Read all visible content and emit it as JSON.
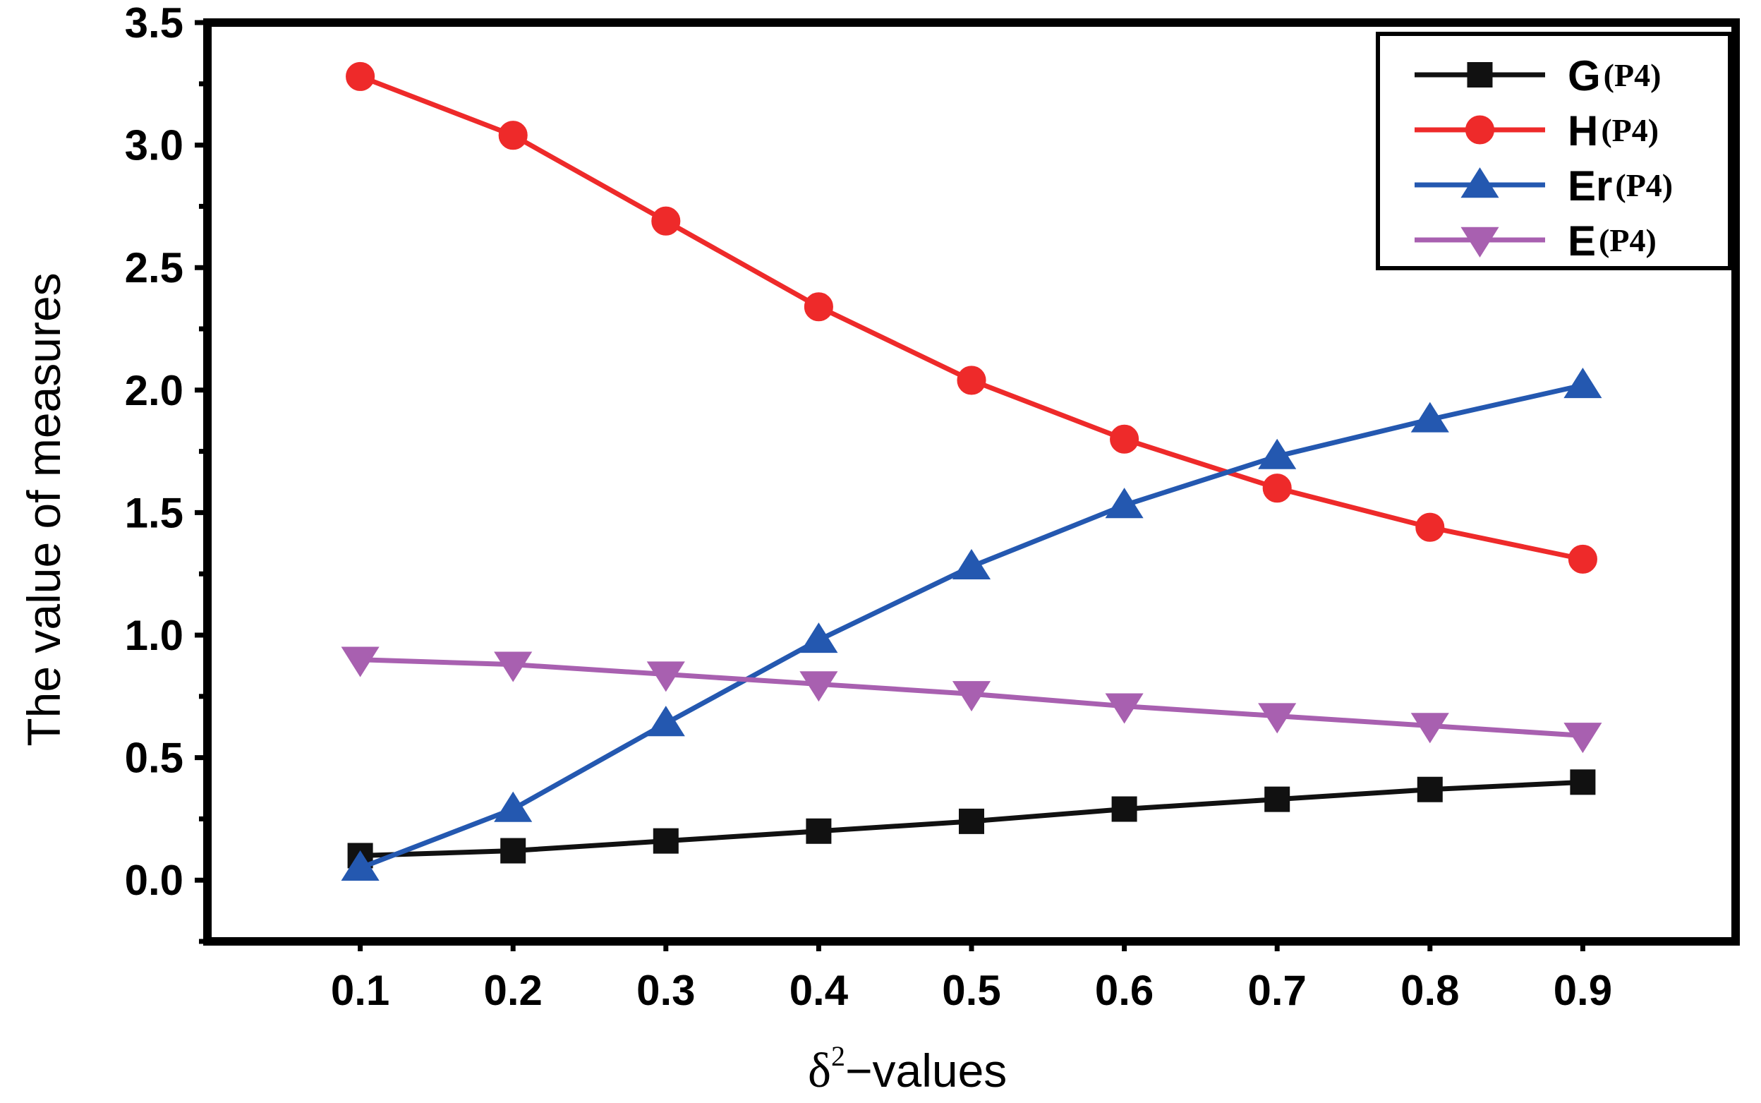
{
  "chart_data": {
    "type": "line",
    "title": "",
    "xlabel": "δ²−values",
    "xlabel_parts": {
      "symbol": "δ",
      "sup": "2",
      "rest": "−values"
    },
    "ylabel": "The value of measures",
    "x": [
      0.1,
      0.2,
      0.3,
      0.4,
      0.5,
      0.6,
      0.7,
      0.8,
      0.9
    ],
    "x_tick_labels": [
      "0.1",
      "0.2",
      "0.3",
      "0.4",
      "0.5",
      "0.6",
      "0.7",
      "0.8",
      "0.9"
    ],
    "y_tick_labels": [
      "0.0",
      "0.5",
      "1.0",
      "1.5",
      "2.0",
      "2.5",
      "3.0",
      "3.5"
    ],
    "y_ticks": [
      0.0,
      0.5,
      1.0,
      1.5,
      2.0,
      2.5,
      3.0,
      3.5
    ],
    "xlim": [
      0.0,
      1.0
    ],
    "ylim": [
      -0.25,
      3.5
    ],
    "grid": false,
    "legend_position": "top-right",
    "series": [
      {
        "name": "G",
        "arg": "(P4)",
        "color": "#111111",
        "marker": "square",
        "values": [
          0.1,
          0.12,
          0.16,
          0.2,
          0.24,
          0.29,
          0.33,
          0.37,
          0.4
        ]
      },
      {
        "name": "H",
        "arg": "(P4)",
        "color": "#ee2a2a",
        "marker": "circle",
        "values": [
          3.28,
          3.04,
          2.69,
          2.34,
          2.04,
          1.8,
          1.6,
          1.44,
          1.31
        ]
      },
      {
        "name": "Er",
        "arg": "(P4)",
        "color": "#2458b0",
        "marker": "triangle-up",
        "values": [
          0.05,
          0.29,
          0.64,
          0.98,
          1.28,
          1.53,
          1.73,
          1.88,
          2.02
        ]
      },
      {
        "name": "E",
        "arg": "(P4)",
        "color": "#a860b0",
        "marker": "triangle-down",
        "values": [
          0.9,
          0.88,
          0.84,
          0.8,
          0.76,
          0.71,
          0.67,
          0.63,
          0.59
        ]
      }
    ]
  }
}
